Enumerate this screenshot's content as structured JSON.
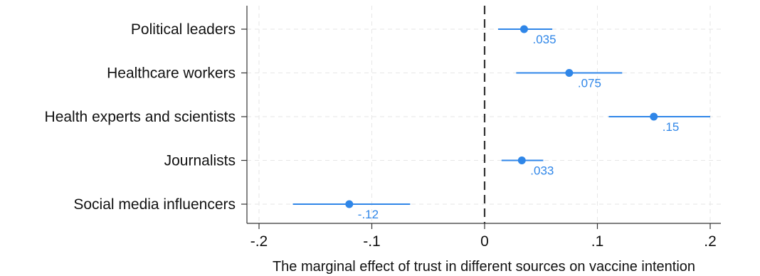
{
  "chart_data": {
    "type": "scatter",
    "subtype": "coefficient-plot",
    "xlabel": "The marginal effect of trust in different sources on vaccine intention",
    "ylabel": "",
    "xlim": [
      -0.2,
      0.2
    ],
    "xticks": [
      -0.2,
      -0.1,
      0,
      0.1,
      0.2
    ],
    "xtick_labels": [
      "-.2",
      "-.1",
      "0",
      ".1",
      ".2"
    ],
    "reference_line": 0,
    "grid": true,
    "color": "#2f86e8",
    "categories": [
      "Political leaders",
      "Healthcare workers",
      "Health experts and scientists",
      "Journalists",
      "Social media influencers"
    ],
    "values": [
      0.035,
      0.075,
      0.15,
      0.033,
      -0.12
    ],
    "ci_low": [
      0.012,
      0.028,
      0.11,
      0.015,
      -0.17
    ],
    "ci_high": [
      0.06,
      0.122,
      0.2,
      0.052,
      -0.066
    ],
    "value_labels": [
      ".035",
      ".075",
      ".15",
      ".033",
      "-.12"
    ]
  }
}
